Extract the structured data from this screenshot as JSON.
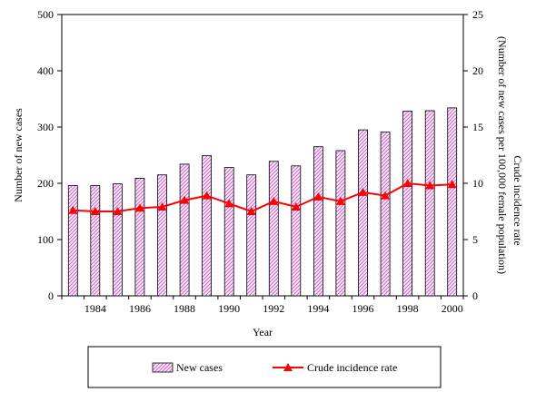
{
  "chart_data": {
    "type": "bar+line",
    "xlabel": "Year",
    "ylabel_left": "Number of new cases",
    "ylabel_right_line1": "Crude incidence  rate",
    "ylabel_right_line2": "(Number of new cases per 100,000 female  population)",
    "years": [
      1983,
      1984,
      1985,
      1986,
      1987,
      1988,
      1989,
      1990,
      1991,
      1992,
      1993,
      1994,
      1995,
      1996,
      1997,
      1998,
      1999,
      2000
    ],
    "x_tick_labels": [
      "1984",
      "1986",
      "1988",
      "1990",
      "1992",
      "1994",
      "1996",
      "1998",
      "2000"
    ],
    "y_left": {
      "min": 0,
      "max": 500,
      "ticks": [
        "0",
        "100",
        "200",
        "300",
        "400",
        "500"
      ]
    },
    "y_right": {
      "min": 0,
      "max": 25,
      "ticks": [
        "0",
        "5",
        "10",
        "15",
        "20",
        "25"
      ]
    },
    "series": [
      {
        "name": "New cases",
        "kind": "bar",
        "axis": "left",
        "color": "#e8b4e8",
        "values": [
          196,
          196,
          199,
          209,
          215,
          234,
          249,
          228,
          215,
          239,
          231,
          265,
          258,
          295,
          291,
          328,
          329,
          334
        ]
      },
      {
        "name": "Crude incidence rate",
        "kind": "line",
        "axis": "right",
        "color": "#ff0000",
        "values": [
          7.6,
          7.5,
          7.5,
          7.8,
          7.9,
          8.5,
          8.9,
          8.2,
          7.5,
          8.4,
          7.9,
          8.8,
          8.4,
          9.2,
          8.9,
          10.0,
          9.8,
          9.9
        ]
      }
    ],
    "legend_position": "bottom",
    "grid": false
  }
}
